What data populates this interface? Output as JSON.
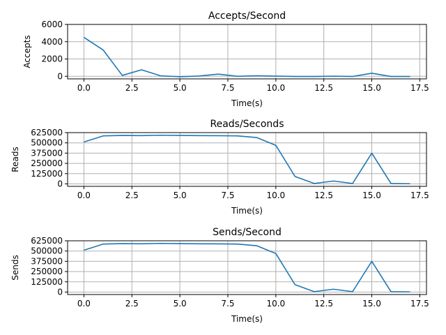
{
  "colors": {
    "line": "#1f77b4",
    "grid": "#b0b0b0"
  },
  "chart_data": [
    {
      "type": "line",
      "title": "Accepts/Second",
      "xlabel": "Time(s)",
      "ylabel": "Accepts",
      "xlim": [
        -0.85,
        17.85
      ],
      "ylim": [
        -300,
        6000
      ],
      "xticks": [
        0,
        2.5,
        5,
        7.5,
        10,
        12.5,
        15,
        17.5
      ],
      "xtick_labels": [
        "0.0",
        "2.5",
        "5.0",
        "7.5",
        "10.0",
        "12.5",
        "15.0",
        "17.5"
      ],
      "yticks": [
        0,
        2000,
        4000,
        6000
      ],
      "ytick_labels": [
        "0",
        "2000",
        "4000",
        "6000"
      ],
      "grid": true,
      "x": [
        0,
        1,
        2,
        3,
        4,
        5,
        6,
        7,
        8,
        9,
        10,
        11,
        12,
        13,
        14,
        15,
        16,
        17
      ],
      "values": [
        4500,
        3050,
        100,
        750,
        50,
        -50,
        30,
        250,
        0,
        60,
        20,
        -20,
        -20,
        10,
        -20,
        350,
        -20,
        -20
      ]
    },
    {
      "type": "line",
      "title": "Reads/Seconds",
      "xlabel": "Time(s)",
      "ylabel": "Reads",
      "xlim": [
        -0.85,
        17.85
      ],
      "ylim": [
        -30000,
        625000
      ],
      "xticks": [
        0,
        2.5,
        5,
        7.5,
        10,
        12.5,
        15,
        17.5
      ],
      "xtick_labels": [
        "0.0",
        "2.5",
        "5.0",
        "7.5",
        "10.0",
        "12.5",
        "15.0",
        "17.5"
      ],
      "yticks": [
        0,
        125000,
        250000,
        375000,
        500000,
        625000
      ],
      "ytick_labels": [
        "0",
        "125000",
        "250000",
        "375000",
        "500000",
        "625000"
      ],
      "grid": true,
      "x": [
        0,
        1,
        2,
        3,
        4,
        5,
        6,
        7,
        8,
        9,
        10,
        11,
        12,
        13,
        14,
        15,
        16,
        17
      ],
      "values": [
        510000,
        585000,
        590000,
        588000,
        593000,
        590000,
        588000,
        587000,
        585000,
        565000,
        470000,
        90000,
        5000,
        35000,
        5000,
        375000,
        5000,
        2000
      ]
    },
    {
      "type": "line",
      "title": "Sends/Second",
      "xlabel": "Time(s)",
      "ylabel": "Sends",
      "xlim": [
        -0.85,
        17.85
      ],
      "ylim": [
        -30000,
        625000
      ],
      "xticks": [
        0,
        2.5,
        5,
        7.5,
        10,
        12.5,
        15,
        17.5
      ],
      "xtick_labels": [
        "0.0",
        "2.5",
        "5.0",
        "7.5",
        "10.0",
        "12.5",
        "15.0",
        "17.5"
      ],
      "yticks": [
        0,
        125000,
        250000,
        375000,
        500000,
        625000
      ],
      "ytick_labels": [
        "0",
        "125000",
        "250000",
        "375000",
        "500000",
        "625000"
      ],
      "grid": true,
      "x": [
        0,
        1,
        2,
        3,
        4,
        5,
        6,
        7,
        8,
        9,
        10,
        11,
        12,
        13,
        14,
        15,
        16,
        17
      ],
      "values": [
        510000,
        585000,
        590000,
        588000,
        593000,
        590000,
        588000,
        587000,
        585000,
        565000,
        470000,
        90000,
        5000,
        35000,
        5000,
        375000,
        5000,
        2000
      ]
    }
  ]
}
